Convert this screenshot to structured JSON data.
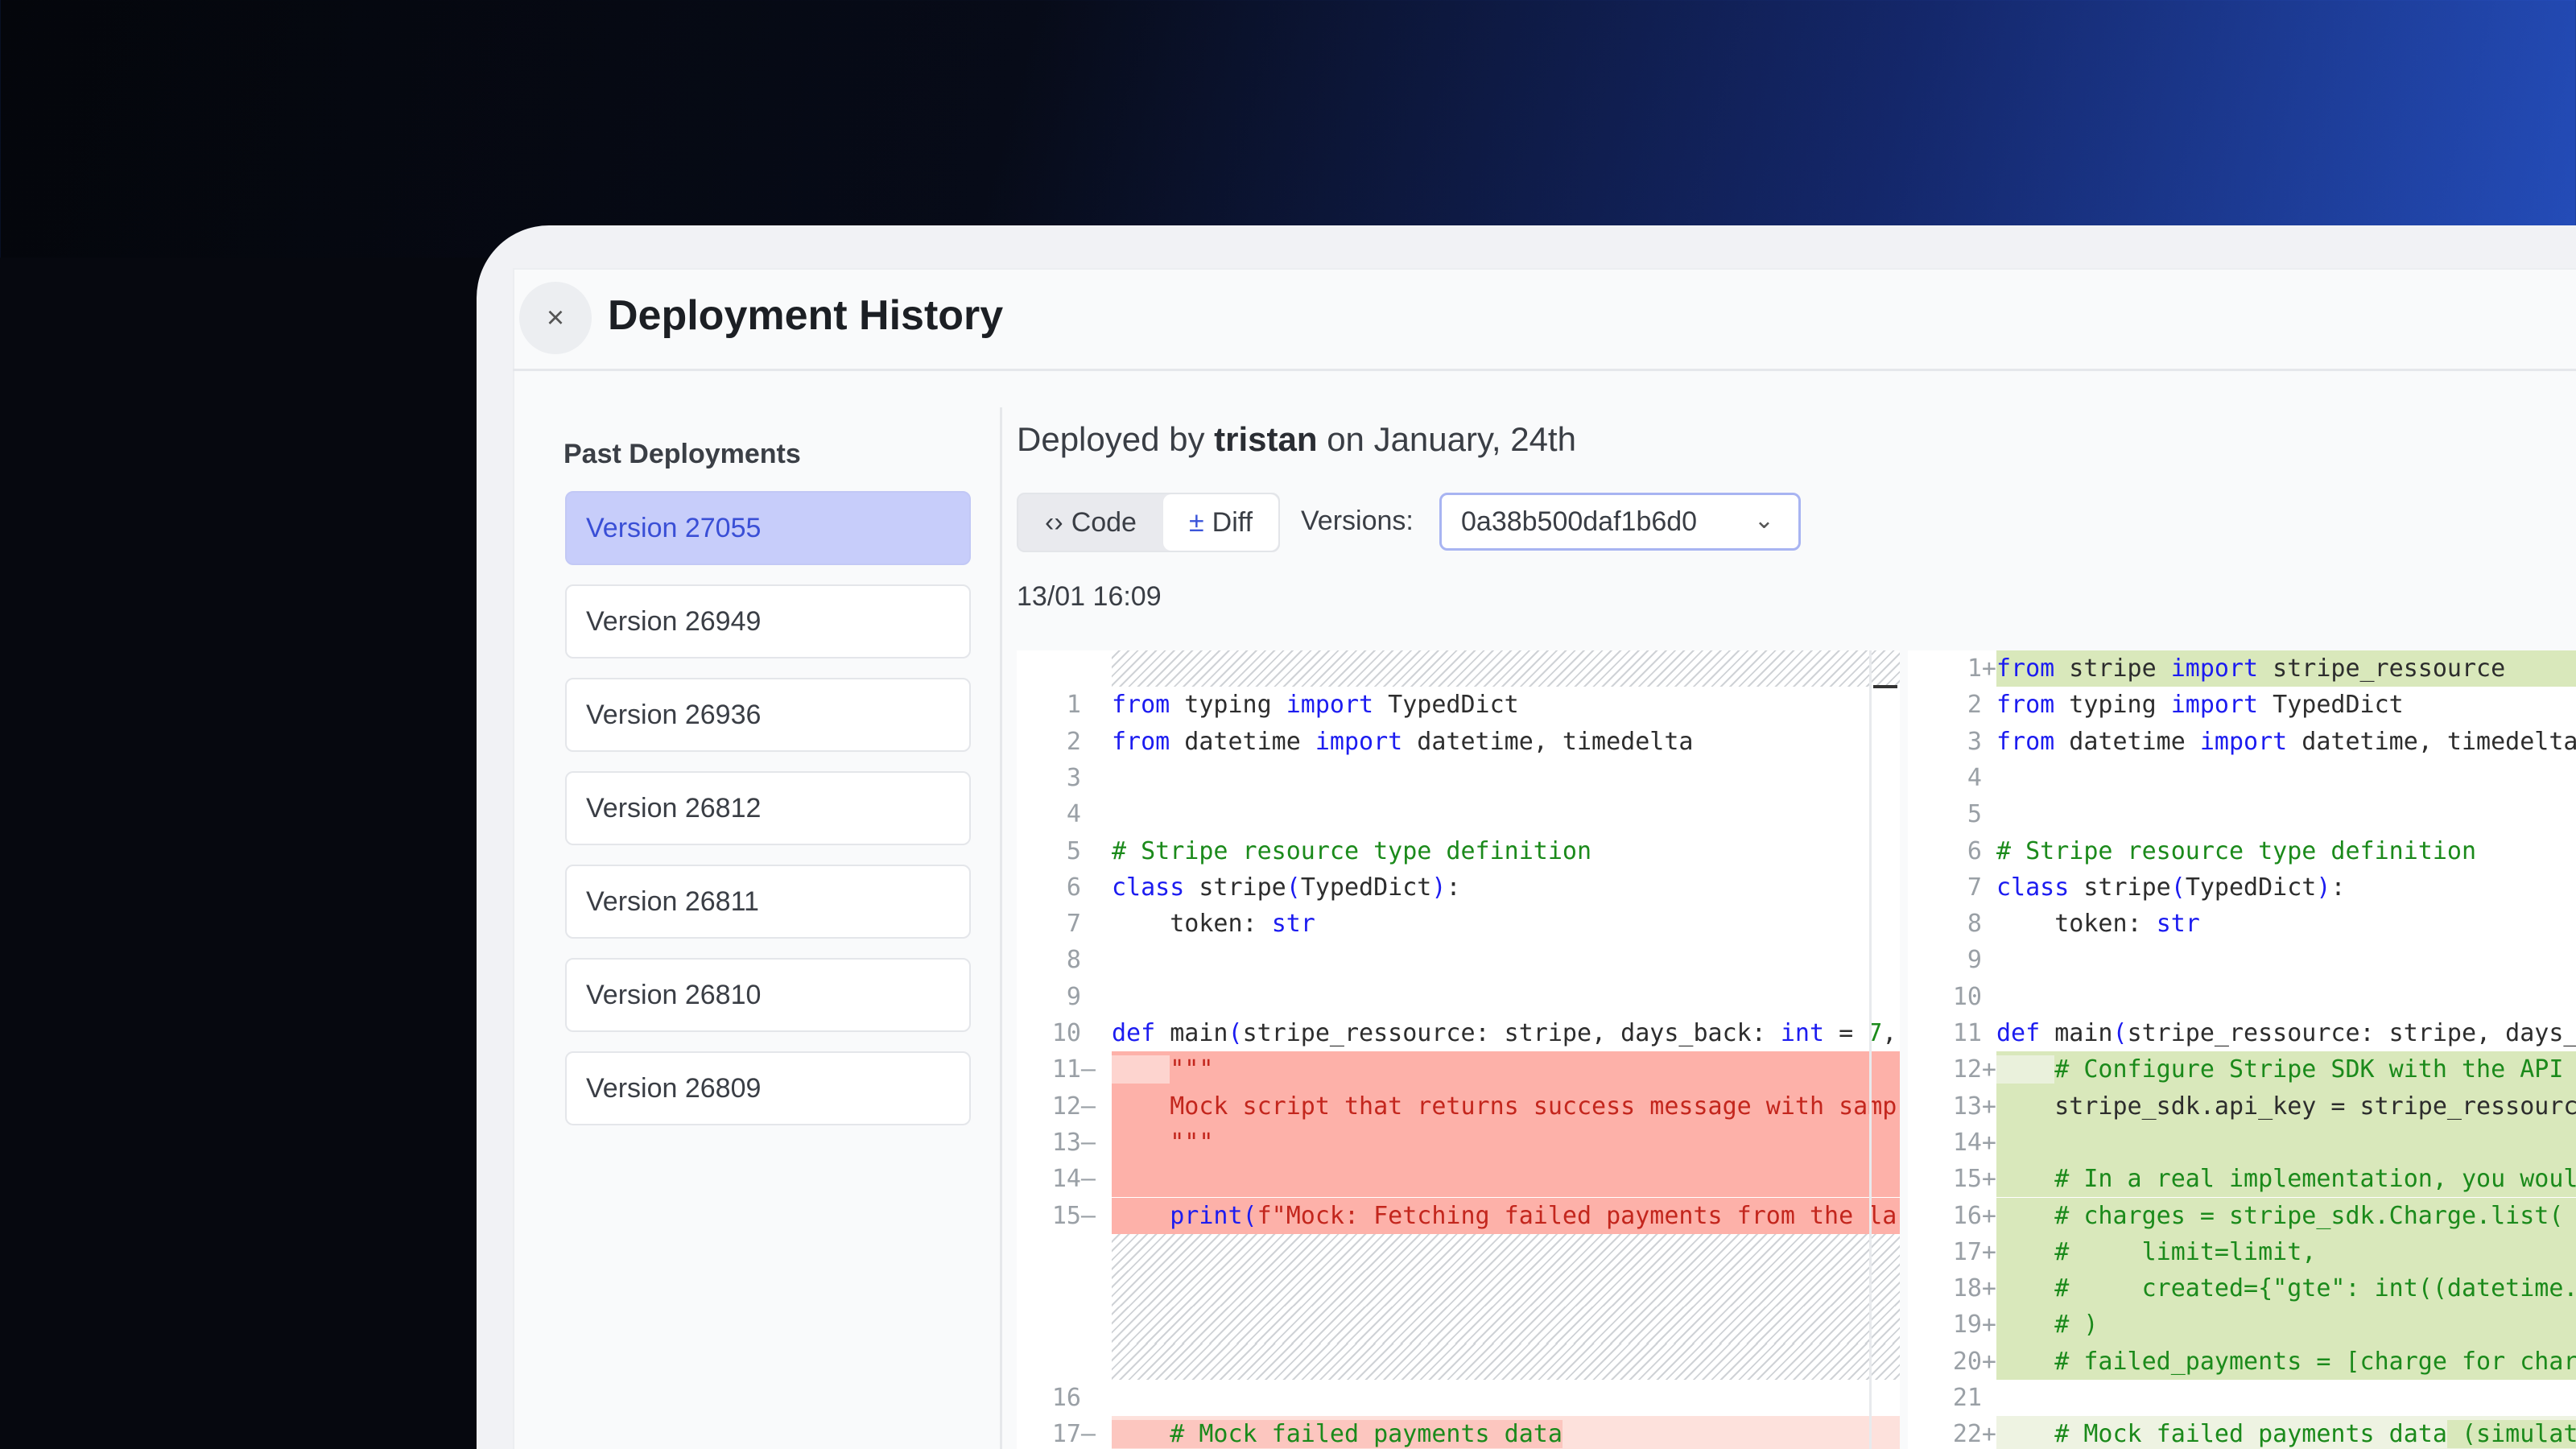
{
  "header": {
    "title": "Deployment History",
    "close_icon": "×"
  },
  "sidebar": {
    "title": "Past Deployments",
    "items": [
      {
        "label": "Version 27055",
        "active": true
      },
      {
        "label": "Version 26949"
      },
      {
        "label": "Version 26936"
      },
      {
        "label": "Version 26812"
      },
      {
        "label": "Version 26811"
      },
      {
        "label": "Version 26810"
      },
      {
        "label": "Version 26809"
      }
    ]
  },
  "main": {
    "deployed_prefix": "Deployed by",
    "deployed_user": "tristan",
    "deployed_suffix": "on January, 24th",
    "toggle": {
      "code_icon": "‹›",
      "code_label": "Code",
      "diff_icon": "±",
      "diff_label": "Diff",
      "active": "Code"
    },
    "versions_label": "Versions:",
    "versions_value": "0a38b500daf1b6d0",
    "chevron_icon": "⌄",
    "date": "13/01 16:09"
  },
  "colors": {
    "accent": "#3b55d9",
    "removed": "#fdb1a9",
    "added": "#d9e8bb",
    "keyword": "#1c1cf0",
    "comment": "#1b8a1b"
  },
  "diff": {
    "left": [
      {
        "type": "filler"
      },
      {
        "n": "1",
        "tokens": [
          [
            "kw",
            "from"
          ],
          [
            "pl",
            " typing "
          ],
          [
            "kw",
            "import"
          ],
          [
            "pl",
            " TypedDict"
          ]
        ]
      },
      {
        "n": "2",
        "tokens": [
          [
            "kw",
            "from"
          ],
          [
            "pl",
            " datetime "
          ],
          [
            "kw",
            "import"
          ],
          [
            "pl",
            " datetime, timedelta"
          ]
        ]
      },
      {
        "n": "3",
        "tokens": []
      },
      {
        "n": "4",
        "tokens": []
      },
      {
        "n": "5",
        "tokens": [
          [
            "cm",
            "# Stripe resource type definition"
          ]
        ]
      },
      {
        "n": "6",
        "tokens": [
          [
            "kw",
            "class"
          ],
          [
            "pl",
            " stripe"
          ],
          [
            "kw",
            "("
          ],
          [
            "pl",
            "TypedDict"
          ],
          [
            "kw",
            ")"
          ],
          [
            "pl",
            ":"
          ]
        ]
      },
      {
        "n": "7",
        "tokens": [
          [
            "pl",
            "    token: "
          ],
          [
            "kw",
            "str"
          ]
        ]
      },
      {
        "n": "8",
        "tokens": []
      },
      {
        "n": "9",
        "tokens": []
      },
      {
        "n": "10",
        "tokens": [
          [
            "kw",
            "def"
          ],
          [
            "pl",
            " main"
          ],
          [
            "kw",
            "("
          ],
          [
            "pl",
            "stripe_ressource: stripe, days_back: "
          ],
          [
            "kw",
            "int"
          ],
          [
            "pl",
            " = "
          ],
          [
            "nm",
            "7"
          ],
          [
            "pl",
            ","
          ]
        ]
      },
      {
        "n": "11",
        "mark": "—",
        "type": "removed",
        "tokens": [
          [
            "lite",
            "    "
          ],
          [
            "pl",
            "\"\"\""
          ]
        ]
      },
      {
        "n": "12",
        "mark": "—",
        "type": "removed",
        "tokens": [
          [
            "pl",
            "    Mock script that returns success message with samp"
          ]
        ]
      },
      {
        "n": "13",
        "mark": "—",
        "type": "removed",
        "tokens": [
          [
            "pl",
            "    \"\"\""
          ]
        ]
      },
      {
        "n": "14",
        "mark": "—",
        "type": "removed",
        "tokens": []
      },
      {
        "n": "15",
        "mark": "—",
        "type": "removed",
        "tokens": [
          [
            "pl",
            "    "
          ],
          [
            "kw",
            "print("
          ],
          [
            "pl",
            "f\"Mock: Fetching failed payments from the la"
          ]
        ]
      },
      {
        "type": "filler"
      },
      {
        "type": "filler"
      },
      {
        "type": "filler"
      },
      {
        "type": "filler"
      },
      {
        "n": "16",
        "tokens": []
      },
      {
        "n": "17",
        "mark": "—",
        "type": "removed-lite",
        "tokens": [
          [
            "chg-r",
            "    "
          ],
          [
            "cm chg-r",
            "# Mock failed payments data"
          ]
        ]
      }
    ],
    "right": [
      {
        "n": "1",
        "mark": "+",
        "type": "added",
        "tokens": [
          [
            "kw",
            "from"
          ],
          [
            "pl",
            " stripe "
          ],
          [
            "kw",
            "import"
          ],
          [
            "pl",
            " stripe_ressource"
          ]
        ]
      },
      {
        "n": "2",
        "tokens": [
          [
            "kw",
            "from"
          ],
          [
            "pl",
            " typing "
          ],
          [
            "kw",
            "import"
          ],
          [
            "pl",
            " TypedDict"
          ]
        ]
      },
      {
        "n": "3",
        "tokens": [
          [
            "kw",
            "from"
          ],
          [
            "pl",
            " datetime "
          ],
          [
            "kw",
            "import"
          ],
          [
            "pl",
            " datetime, timedelta"
          ]
        ]
      },
      {
        "n": "4",
        "tokens": []
      },
      {
        "n": "5",
        "tokens": []
      },
      {
        "n": "6",
        "tokens": [
          [
            "cm",
            "# Stripe resource type definition"
          ]
        ]
      },
      {
        "n": "7",
        "tokens": [
          [
            "kw",
            "class"
          ],
          [
            "pl",
            " stripe"
          ],
          [
            "kw",
            "("
          ],
          [
            "pl",
            "TypedDict"
          ],
          [
            "kw",
            ")"
          ],
          [
            "pl",
            ":"
          ]
        ]
      },
      {
        "n": "8",
        "tokens": [
          [
            "pl",
            "    token: "
          ],
          [
            "kw",
            "str"
          ]
        ]
      },
      {
        "n": "9",
        "tokens": []
      },
      {
        "n": "10",
        "tokens": []
      },
      {
        "n": "11",
        "tokens": [
          [
            "kw",
            "def"
          ],
          [
            "pl",
            " main"
          ],
          [
            "kw",
            "("
          ],
          [
            "pl",
            "stripe_ressource: stripe, days_"
          ]
        ]
      },
      {
        "n": "12",
        "mark": "+",
        "type": "added",
        "tokens": [
          [
            "lite",
            "    "
          ],
          [
            "cm",
            "# Configure Stripe SDK with the API"
          ]
        ]
      },
      {
        "n": "13",
        "mark": "+",
        "type": "added",
        "tokens": [
          [
            "pl",
            "    stripe_sdk.api_key = stripe_ressourc"
          ]
        ]
      },
      {
        "n": "14",
        "mark": "+",
        "type": "added",
        "tokens": []
      },
      {
        "n": "15",
        "mark": "+",
        "type": "added",
        "tokens": [
          [
            "cm",
            "    # In a real implementation, you woul"
          ]
        ]
      },
      {
        "n": "16",
        "mark": "+",
        "type": "added",
        "tokens": [
          [
            "cm",
            "    # charges = stripe_sdk.Charge.list("
          ]
        ]
      },
      {
        "n": "17",
        "mark": "+",
        "type": "added",
        "tokens": [
          [
            "cm",
            "    #     limit=limit,"
          ]
        ]
      },
      {
        "n": "18",
        "mark": "+",
        "type": "added",
        "tokens": [
          [
            "cm",
            "    #     created={\"gte\": int((datetime."
          ]
        ]
      },
      {
        "n": "19",
        "mark": "+",
        "type": "added",
        "tokens": [
          [
            "cm",
            "    # )"
          ]
        ]
      },
      {
        "n": "20",
        "mark": "+",
        "type": "added",
        "tokens": [
          [
            "cm",
            "    # failed_payments = [charge for char"
          ]
        ]
      },
      {
        "n": "21",
        "tokens": []
      },
      {
        "n": "22",
        "mark": "+",
        "type": "added-lite",
        "tokens": [
          [
            "cm",
            "    # Mock failed payments data"
          ],
          [
            "cm chg-g",
            " (simulat"
          ]
        ]
      }
    ]
  }
}
